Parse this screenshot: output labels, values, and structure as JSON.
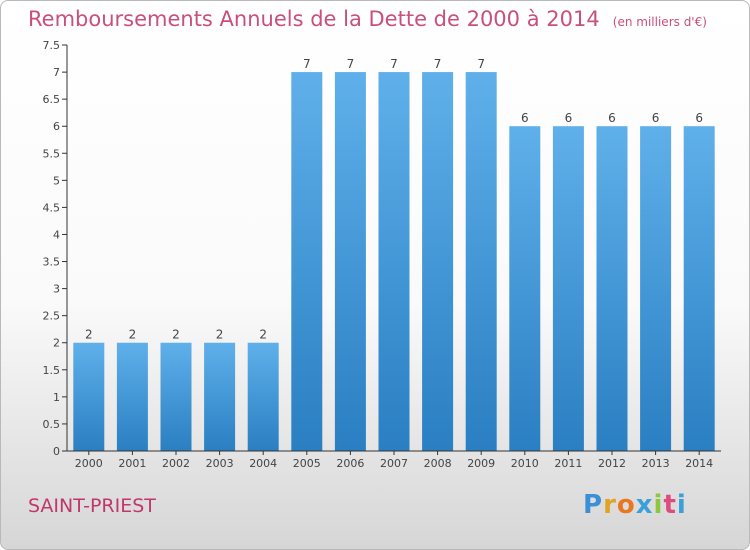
{
  "title": "Remboursements Annuels de la Dette de 2000 à 2014",
  "unit": "(en milliers d'€)",
  "city": "SAINT-PRIEST",
  "logo": {
    "letters": [
      "P",
      "r",
      "o",
      "x",
      "i",
      "t",
      "i"
    ],
    "colors": [
      "#3a8fd6",
      "#e0a423",
      "#e87722",
      "#3aa0d9",
      "#8dc63f",
      "#e04b7d",
      "#3aa0d9"
    ]
  },
  "colors": {
    "title": "#c94f7c",
    "bar_top": "#5fb0ea",
    "bar_bottom": "#2a7fc2",
    "axis": "#333333"
  },
  "chart_data": {
    "type": "bar",
    "categories": [
      "2000",
      "2001",
      "2002",
      "2003",
      "2004",
      "2005",
      "2006",
      "2007",
      "2008",
      "2009",
      "2010",
      "2011",
      "2012",
      "2013",
      "2014"
    ],
    "values": [
      2,
      2,
      2,
      2,
      2,
      7,
      7,
      7,
      7,
      7,
      6,
      6,
      6,
      6,
      6
    ],
    "y_ticks": [
      "0",
      "0.5",
      "1",
      "1.5",
      "2",
      "2.5",
      "3",
      "3.5",
      "4",
      "4.5",
      "5",
      "5.5",
      "6",
      "6.5",
      "7",
      "7.5"
    ],
    "ylim": [
      0,
      7.5
    ],
    "grid": false
  }
}
